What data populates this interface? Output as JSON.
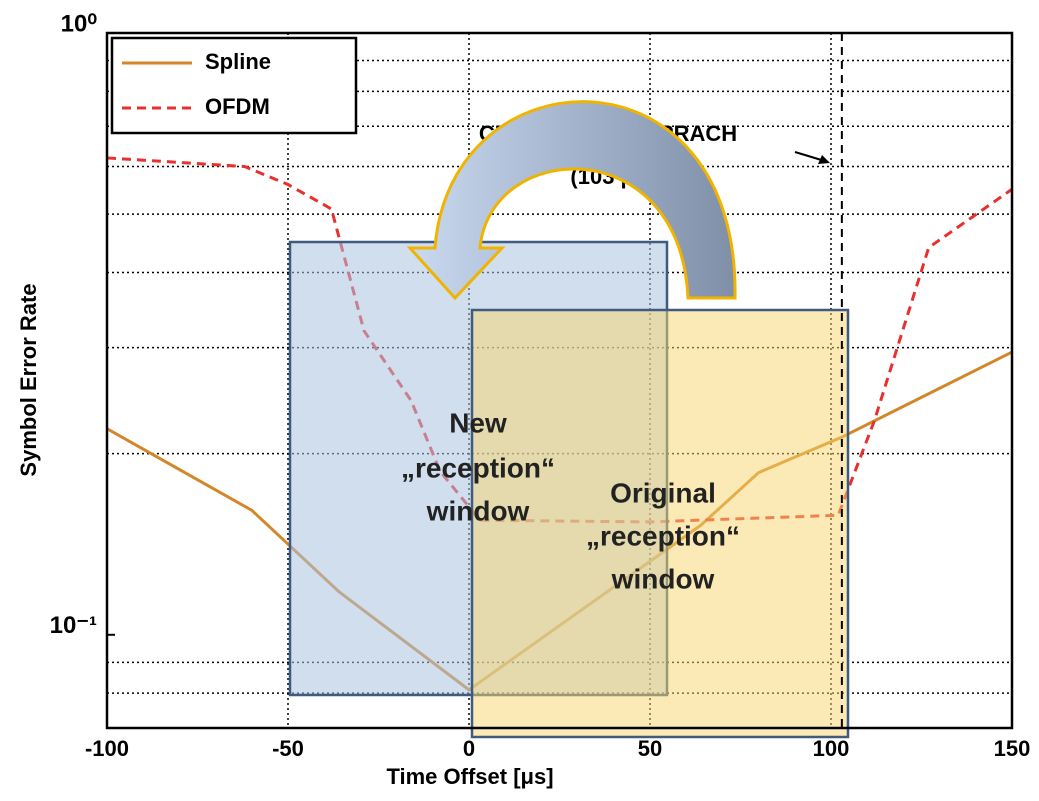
{
  "chart_data": {
    "type": "line",
    "x_label": "Time Offset [μs]",
    "y_label": "Symbol Error Rate",
    "xlim": [
      -100,
      150
    ],
    "xticks": [
      -100,
      -50,
      0,
      50,
      100,
      150
    ],
    "ylim": [
      0.07,
      1
    ],
    "log_y": true,
    "yticks": [
      {
        "value": 1,
        "label": "10⁰"
      },
      {
        "value": 0.1,
        "label": "10⁻¹"
      }
    ],
    "minor_yticks": [
      0.08,
      0.09,
      0.2,
      0.3,
      0.4,
      0.5,
      0.6,
      0.7,
      0.8,
      0.9
    ],
    "grid": true,
    "legend": "upper left",
    "series": [
      {
        "name": "Spline",
        "color": "#d4872a",
        "dash": false,
        "x": [
          -100,
          -60,
          -36,
          0,
          64,
          80,
          103,
          150
        ],
        "values": [
          0.22,
          0.161,
          0.118,
          0.081,
          0.152,
          0.186,
          0.213,
          0.295
        ]
      },
      {
        "name": "OFDM",
        "color": "#e8302e",
        "dash": true,
        "x": [
          -100,
          -62,
          -50,
          -38,
          -29,
          -16,
          -8,
          3,
          50,
          102,
          112,
          127,
          150
        ],
        "values": [
          0.62,
          0.6,
          0.56,
          0.51,
          0.32,
          0.245,
          0.187,
          0.155,
          0.154,
          0.158,
          0.227,
          0.44,
          0.55
        ]
      }
    ],
    "cp_line": 103,
    "annotation_title": "CP length in LTE PRACH",
    "annotation_value": "(103 μs)",
    "new_window": [
      "New",
      "„reception“",
      "window"
    ],
    "original_window": [
      "Original",
      "„reception“",
      "window"
    ]
  }
}
